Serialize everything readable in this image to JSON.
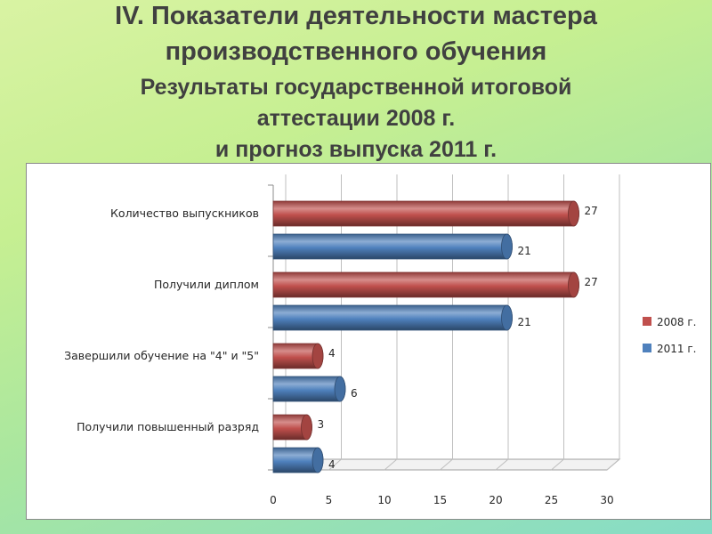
{
  "title": {
    "line1": "IV. Показатели деятельности мастера",
    "line2": "производственного обучения",
    "line3": "Результаты государственной итоговой",
    "line4": "аттестации 2008 г.",
    "line5": "и прогноз выпуска 2011 г."
  },
  "chart_data": {
    "type": "bar",
    "orientation": "horizontal",
    "style": "3d-cylinder",
    "categories": [
      "Количество выпускников",
      "Получили диплом",
      "Завершили обучение на \"4\" и \"5\"",
      "Получили повышенный разряд"
    ],
    "series": [
      {
        "name": "2008 г.",
        "color": "#c0504d",
        "values": [
          27,
          27,
          4,
          3
        ]
      },
      {
        "name": "2011 г.",
        "color": "#4f81bd",
        "values": [
          21,
          21,
          6,
          4
        ]
      }
    ],
    "xlim": [
      0,
      30
    ],
    "xticks": [
      "0",
      "5",
      "10",
      "15",
      "20",
      "25",
      "30"
    ],
    "grid": true,
    "legend": "right"
  }
}
